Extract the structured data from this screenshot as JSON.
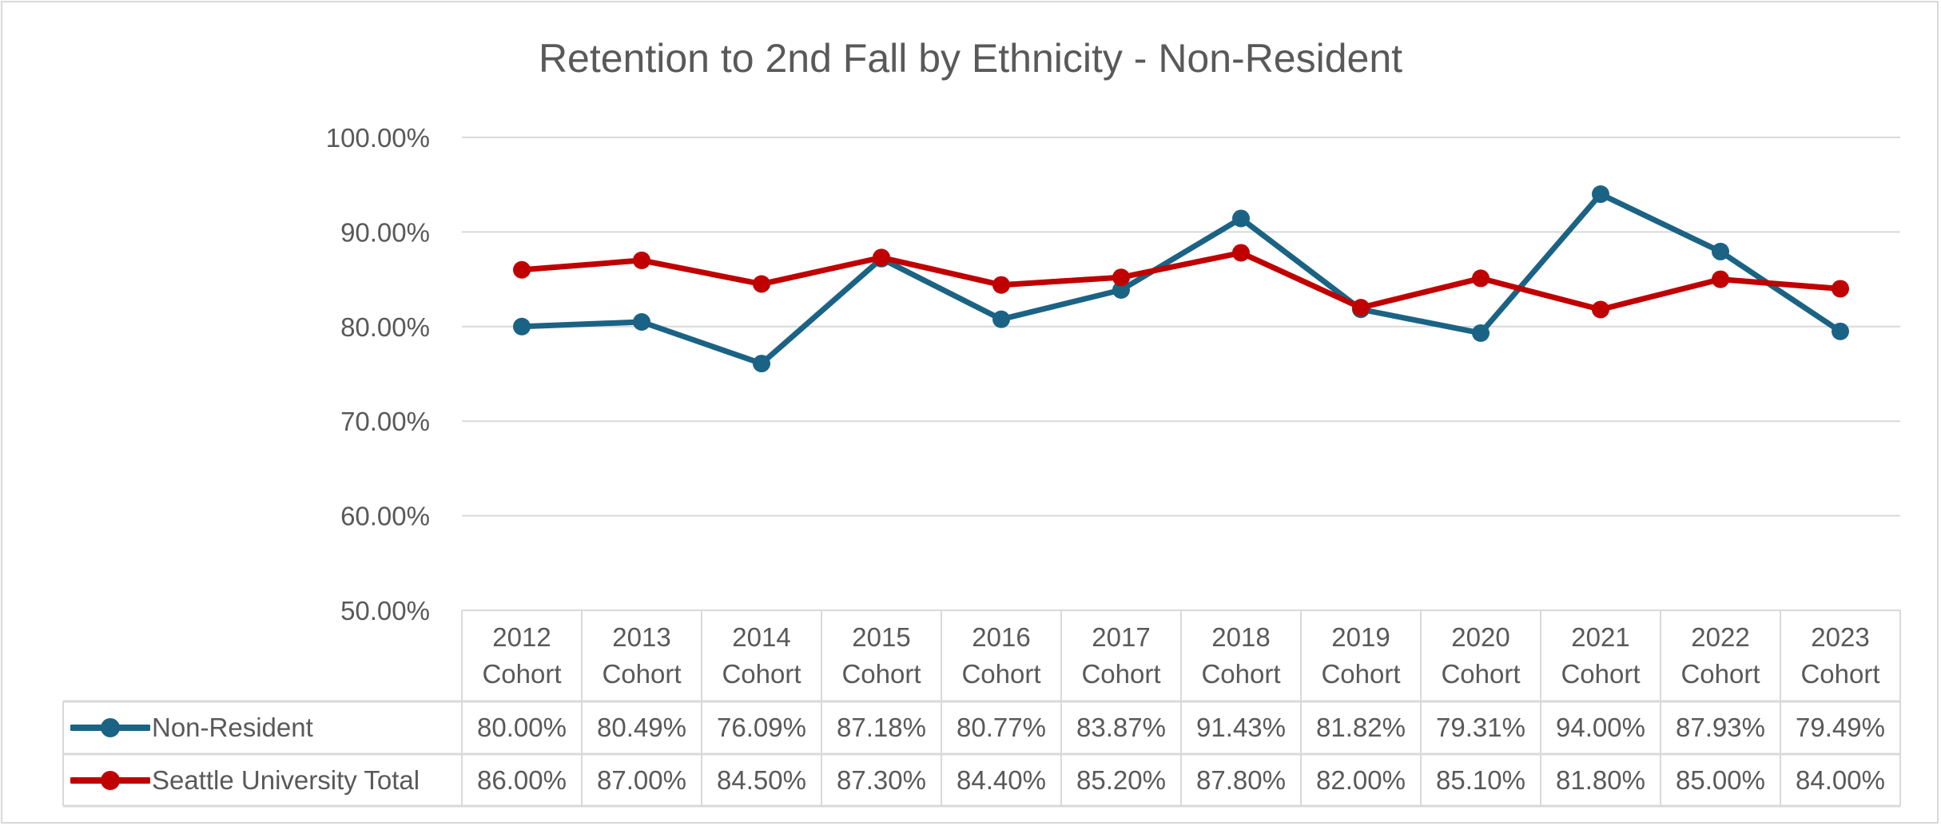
{
  "chart_data": {
    "type": "line",
    "title": "Retention to 2nd Fall by Ethnicity - Non-Resident",
    "categories": [
      "2012 Cohort",
      "2013 Cohort",
      "2014 Cohort",
      "2015 Cohort",
      "2016 Cohort",
      "2017 Cohort",
      "2018 Cohort",
      "2019 Cohort",
      "2020 Cohort",
      "2021 Cohort",
      "2022 Cohort",
      "2023 Cohort"
    ],
    "category_lines": [
      [
        "2012",
        "Cohort"
      ],
      [
        "2013",
        "Cohort"
      ],
      [
        "2014",
        "Cohort"
      ],
      [
        "2015",
        "Cohort"
      ],
      [
        "2016",
        "Cohort"
      ],
      [
        "2017",
        "Cohort"
      ],
      [
        "2018",
        "Cohort"
      ],
      [
        "2019",
        "Cohort"
      ],
      [
        "2020",
        "Cohort"
      ],
      [
        "2021",
        "Cohort"
      ],
      [
        "2022",
        "Cohort"
      ],
      [
        "2023",
        "Cohort"
      ]
    ],
    "ylim": [
      50,
      100
    ],
    "yticks": [
      "50.00%",
      "60.00%",
      "70.00%",
      "80.00%",
      "90.00%",
      "100.00%"
    ],
    "grid": true,
    "legend": "data-table",
    "series": [
      {
        "name": "Non-Resident",
        "color": "#1B6384",
        "values": [
          80.0,
          80.49,
          76.09,
          87.18,
          80.77,
          83.87,
          91.43,
          81.82,
          79.31,
          94.0,
          87.93,
          79.49
        ],
        "labels": [
          "80.00%",
          "80.49%",
          "76.09%",
          "87.18%",
          "80.77%",
          "83.87%",
          "91.43%",
          "81.82%",
          "79.31%",
          "94.00%",
          "87.93%",
          "79.49%"
        ]
      },
      {
        "name": "Seattle University Total",
        "color": "#C00000",
        "values": [
          86.0,
          87.0,
          84.5,
          87.3,
          84.4,
          85.2,
          87.8,
          82.0,
          85.1,
          81.8,
          85.0,
          84.0
        ],
        "labels": [
          "86.00%",
          "87.00%",
          "84.50%",
          "87.30%",
          "84.40%",
          "85.20%",
          "87.80%",
          "82.00%",
          "85.10%",
          "81.80%",
          "85.00%",
          "84.00%"
        ]
      }
    ]
  }
}
